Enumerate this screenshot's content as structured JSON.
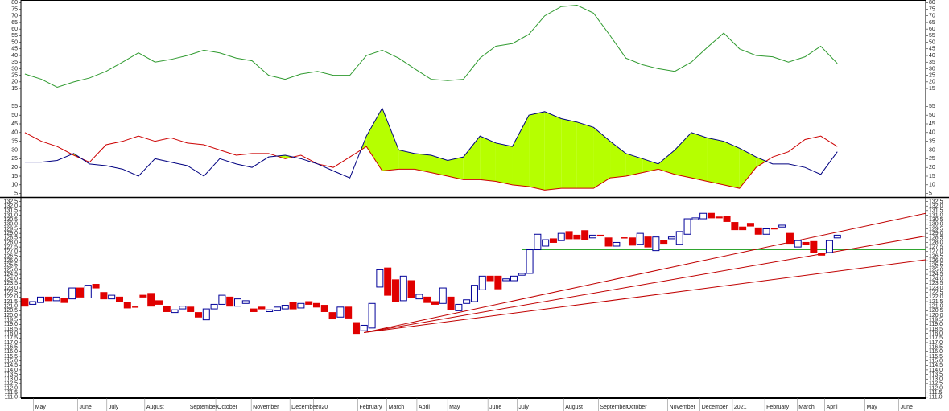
{
  "chart_data": [
    {
      "type": "line",
      "ylim": [
        12,
        82
      ],
      "yticks": [
        15,
        20,
        25,
        30,
        35,
        40,
        45,
        50,
        55,
        60,
        65,
        70,
        75,
        80
      ],
      "x": [
        0,
        2.1,
        4.1,
        6.2,
        8.2,
        10.3,
        12.4,
        14.4,
        16.5,
        18.5,
        20.6,
        22.7,
        24.7,
        26.8,
        28.8,
        30.9,
        33.0,
        35.0,
        37.1,
        39.1,
        41.2,
        43.3,
        45.3,
        47.4,
        49.4,
        51.5,
        53.6,
        55.6,
        57.7,
        59.7,
        61.8,
        63.9,
        65.9,
        68.0,
        70.0,
        72.1,
        74.2,
        76.2,
        78.3,
        80.3,
        82.4,
        84.5,
        86.5,
        88.6,
        90.6,
        92.7,
        94.8,
        96.8,
        98.9,
        100.9,
        103.0
      ],
      "series": [
        {
          "color": "#2f9a2f",
          "values": [
            26,
            22,
            16,
            20,
            23,
            28,
            35,
            42,
            35,
            37,
            40,
            44,
            42,
            38,
            36,
            25,
            22,
            26,
            28,
            25,
            25,
            40,
            44,
            38,
            30,
            22,
            21,
            22,
            38,
            47,
            49,
            56,
            70,
            77,
            78,
            72,
            55,
            38,
            33,
            30,
            28,
            35,
            46,
            57,
            45,
            40,
            39,
            35,
            39,
            47,
            34
          ]
        }
      ]
    },
    {
      "type": "dmi",
      "ylim": [
        3,
        57
      ],
      "yticks": [
        5,
        10,
        15,
        20,
        25,
        30,
        35,
        40,
        45,
        50,
        55
      ],
      "fill_color": "#b6ff00",
      "x": [
        0,
        2.1,
        4.1,
        6.2,
        8.2,
        10.3,
        12.4,
        14.4,
        16.5,
        18.5,
        20.6,
        22.7,
        24.7,
        26.8,
        28.8,
        30.9,
        33.0,
        35.0,
        37.1,
        39.1,
        41.2,
        43.3,
        45.3,
        47.4,
        49.4,
        51.5,
        53.6,
        55.6,
        57.7,
        59.7,
        61.8,
        63.9,
        65.9,
        68.0,
        70.0,
        72.1,
        74.2,
        76.2,
        78.3,
        80.3,
        82.4,
        84.5,
        86.5,
        88.6,
        90.6,
        92.7,
        94.8,
        96.8,
        98.9,
        100.9,
        103.0
      ],
      "series": [
        {
          "color": "#cc0000",
          "values": [
            40,
            35,
            32,
            27,
            23,
            33,
            35,
            38,
            35,
            37,
            34,
            33,
            30,
            27,
            28,
            28,
            25,
            27,
            22,
            20,
            26,
            32,
            18,
            19,
            19,
            17,
            15,
            13,
            13,
            12,
            10,
            9,
            7,
            8,
            8,
            8,
            14,
            15,
            17,
            19,
            16,
            14,
            12,
            10,
            8,
            20,
            26,
            29,
            36,
            38,
            32
          ]
        },
        {
          "color": "#000080",
          "values": [
            23,
            23,
            24,
            28,
            22,
            21,
            19,
            15,
            25,
            23,
            21,
            15,
            25,
            22,
            20,
            26,
            27,
            25,
            22,
            18,
            14,
            38,
            54,
            30,
            28,
            27,
            24,
            26,
            38,
            34,
            32,
            50,
            52,
            48,
            46,
            43,
            35,
            28,
            25,
            22,
            30,
            40,
            37,
            35,
            31,
            26,
            22,
            22,
            20,
            16,
            29
          ]
        }
      ]
    },
    {
      "type": "candlestick",
      "ylim": [
        110.9,
        132.9
      ],
      "up_color": "#000099",
      "down_color": "#e00000",
      "yticks": [
        {
          "value": 111,
          "label": "111.0"
        },
        {
          "value": 111.5,
          "label": "111.5"
        },
        {
          "value": 112,
          "label": "112.0"
        },
        {
          "value": 112.5,
          "label": "112.5"
        },
        {
          "value": 113,
          "label": "113.0"
        },
        {
          "value": 113.5,
          "label": "113.5"
        },
        {
          "value": 114,
          "label": "114.0"
        },
        {
          "value": 114.5,
          "label": "114.5"
        },
        {
          "value": 115,
          "label": "115.0"
        },
        {
          "value": 115.5,
          "label": "115.5"
        },
        {
          "value": 116,
          "label": "116.0"
        },
        {
          "value": 116.5,
          "label": "116.5"
        },
        {
          "value": 117,
          "label": "117.0"
        },
        {
          "value": 117.5,
          "label": "117.5"
        },
        {
          "value": 118,
          "label": "118.0"
        },
        {
          "value": 118.5,
          "label": "118.5"
        },
        {
          "value": 119,
          "label": "119.0"
        },
        {
          "value": 119.5,
          "label": "119.5"
        },
        {
          "value": 120,
          "label": "120.0"
        },
        {
          "value": 120.5,
          "label": "120.5"
        },
        {
          "value": 121,
          "label": "121.0"
        },
        {
          "value": 121.5,
          "label": "121.5"
        },
        {
          "value": 122,
          "label": "122.0"
        },
        {
          "value": 122.5,
          "label": "122.5"
        },
        {
          "value": 123,
          "label": "123.0"
        },
        {
          "value": 123.5,
          "label": "123.5"
        },
        {
          "value": 124,
          "label": "124.0"
        },
        {
          "value": 124.5,
          "label": "124.5"
        },
        {
          "value": 125,
          "label": "125.0"
        },
        {
          "value": 125.5,
          "label": "125.5"
        },
        {
          "value": 126,
          "label": "126.0"
        },
        {
          "value": 126.5,
          "label": "126.5"
        },
        {
          "value": 127,
          "label": "127.0"
        },
        {
          "value": 127.5,
          "label": "127.5"
        },
        {
          "value": 128,
          "label": "128.0"
        },
        {
          "value": 128.5,
          "label": "128.5"
        },
        {
          "value": 129,
          "label": "129.0"
        },
        {
          "value": 129.5,
          "label": "129.5"
        },
        {
          "value": 130,
          "label": "130.0"
        },
        {
          "value": 130.5,
          "label": "130.5"
        },
        {
          "value": 131,
          "label": "131.0"
        },
        {
          "value": 131.5,
          "label": "131.5"
        },
        {
          "value": 132,
          "label": "132.0"
        },
        {
          "value": 132.5,
          "label": "132.5"
        }
      ],
      "open": [
        121.8,
        121.2,
        121.4,
        122.0,
        121.6,
        121.9,
        121.8,
        123.0,
        121.9,
        123.4,
        122.5,
        121.8,
        122.0,
        121.4,
        120.9,
        122.2,
        122.4,
        121.6,
        121.0,
        120.3,
        120.7,
        120.9,
        120.3,
        119.5,
        120.7,
        121.2,
        122.0,
        121.0,
        121.3,
        120.7,
        120.9,
        120.4,
        120.5,
        120.7,
        121.4,
        120.8,
        121.5,
        121.3,
        121.1,
        120.3,
        119.8,
        120.9,
        119.2,
        118.3,
        118.6,
        123.1,
        125.2,
        123.9,
        121.6,
        123.8,
        121.8,
        122.0,
        121.5,
        121.3,
        122.0,
        120.5,
        121.3,
        121.5,
        122.8,
        124.3,
        124.3,
        123.8,
        123.8,
        124.4,
        124.6,
        127.2,
        127.6,
        128.4,
        128.2,
        129.2,
        128.8,
        129.3,
        128.5,
        128.8,
        128.5,
        127.6,
        128.5,
        128.5,
        127.8,
        128.6,
        127.1,
        128.2,
        128.4,
        127.8,
        128.9,
        130.5,
        130.6,
        131.2,
        130.8,
        130.9,
        130.2,
        129.7,
        130.1,
        129.6,
        128.9,
        129.5,
        129.7,
        129.0,
        127.5,
        128.0,
        128.1,
        126.8,
        126.9,
        128.5
      ],
      "close": [
        121.0,
        121.5,
        122.0,
        121.6,
        122.0,
        121.4,
        123.0,
        122.0,
        123.3,
        123.0,
        121.8,
        122.2,
        121.5,
        120.8,
        120.9,
        122.0,
        121.0,
        121.2,
        120.4,
        120.6,
        121.0,
        120.4,
        119.8,
        120.7,
        121.2,
        122.2,
        121.0,
        121.8,
        121.6,
        120.4,
        120.7,
        120.6,
        120.9,
        121.1,
        120.7,
        121.3,
        121.2,
        120.9,
        120.4,
        119.6,
        120.9,
        119.7,
        118.0,
        118.9,
        121.3,
        125.0,
        122.2,
        121.5,
        124.3,
        121.9,
        122.3,
        121.4,
        121.2,
        123.0,
        120.6,
        121.2,
        121.7,
        123.3,
        124.3,
        123.8,
        122.9,
        124.0,
        124.3,
        124.6,
        127.2,
        128.9,
        128.3,
        128.0,
        129.0,
        128.4,
        128.4,
        128.3,
        128.8,
        128.7,
        127.6,
        128.0,
        128.5,
        127.7,
        129.0,
        127.5,
        128.6,
        127.9,
        128.6,
        129.2,
        130.6,
        130.7,
        131.2,
        130.7,
        130.7,
        130.3,
        129.4,
        129.4,
        129.8,
        128.9,
        129.5,
        129.5,
        129.9,
        127.9,
        128.2,
        127.8,
        126.9,
        126.6,
        128.2,
        128.8
      ],
      "hlines": [
        {
          "value": 127.2,
          "x": [
            63,
            114.2
          ],
          "color": "#2fa52f"
        }
      ],
      "trend_color": "#c00000",
      "trendlines": [
        {
          "x": [
            43,
            114.2
          ],
          "y": [
            118.1,
            131.2
          ]
        },
        {
          "x": [
            43,
            114.2
          ],
          "y": [
            118.1,
            128.7
          ]
        },
        {
          "x": [
            43,
            114.2
          ],
          "y": [
            118.1,
            126.1
          ]
        }
      ]
    }
  ],
  "x_axis": {
    "xlim": [
      -0.5,
      114.2
    ],
    "xticks": [
      {
        "value": 1.1,
        "label": "May"
      },
      {
        "value": 6.7,
        "label": "June"
      },
      {
        "value": 10.4,
        "label": "July"
      },
      {
        "value": 15.2,
        "label": "August"
      },
      {
        "value": 20.7,
        "label": "September"
      },
      {
        "value": 24.2,
        "label": "October"
      },
      {
        "value": 28.7,
        "label": "November"
      },
      {
        "value": 33.6,
        "label": "December"
      },
      {
        "value": 36.6,
        "label": "2020"
      },
      {
        "value": 42.2,
        "label": "February"
      },
      {
        "value": 45.9,
        "label": "March"
      },
      {
        "value": 49.7,
        "label": "April"
      },
      {
        "value": 53.6,
        "label": "May"
      },
      {
        "value": 58.7,
        "label": "June"
      },
      {
        "value": 62.4,
        "label": "July"
      },
      {
        "value": 68.3,
        "label": "August"
      },
      {
        "value": 72.7,
        "label": "September"
      },
      {
        "value": 76.1,
        "label": "October"
      },
      {
        "value": 81.5,
        "label": "November"
      },
      {
        "value": 85.6,
        "label": "December"
      },
      {
        "value": 89.7,
        "label": "2021"
      },
      {
        "value": 93.8,
        "label": "February"
      },
      {
        "value": 97.9,
        "label": "March"
      },
      {
        "value": 101.4,
        "label": "April"
      },
      {
        "value": 106.5,
        "label": "May"
      },
      {
        "value": 110.8,
        "label": "June"
      }
    ]
  }
}
